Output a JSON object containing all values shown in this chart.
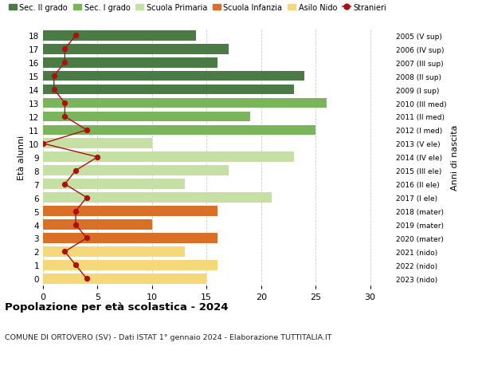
{
  "ages": [
    18,
    17,
    16,
    15,
    14,
    13,
    12,
    11,
    10,
    9,
    8,
    7,
    6,
    5,
    4,
    3,
    2,
    1,
    0
  ],
  "bar_values": [
    14,
    17,
    16,
    24,
    23,
    26,
    19,
    25,
    10,
    23,
    17,
    13,
    21,
    16,
    10,
    16,
    13,
    16,
    15
  ],
  "stranieri": [
    3,
    2,
    2,
    1,
    1,
    2,
    2,
    4,
    0,
    5,
    3,
    2,
    4,
    3,
    3,
    4,
    2,
    3,
    4
  ],
  "right_labels": [
    "2005 (V sup)",
    "2006 (IV sup)",
    "2007 (III sup)",
    "2008 (II sup)",
    "2009 (I sup)",
    "2010 (III med)",
    "2011 (II med)",
    "2012 (I med)",
    "2013 (V ele)",
    "2014 (IV ele)",
    "2015 (III ele)",
    "2016 (II ele)",
    "2017 (I ele)",
    "2018 (mater)",
    "2019 (mater)",
    "2020 (mater)",
    "2021 (nido)",
    "2022 (nido)",
    "2023 (nido)"
  ],
  "bar_colors": [
    "#4a7a45",
    "#4a7a45",
    "#4a7a45",
    "#4a7a45",
    "#4a7a45",
    "#7ab55c",
    "#7ab55c",
    "#7ab55c",
    "#c5dfa5",
    "#c5dfa5",
    "#c5dfa5",
    "#c5dfa5",
    "#c5dfa5",
    "#d97028",
    "#d97028",
    "#d97028",
    "#f5d87a",
    "#f5d87a",
    "#f5d87a"
  ],
  "legend_labels": [
    "Sec. II grado",
    "Sec. I grado",
    "Scuola Primaria",
    "Scuola Infanzia",
    "Asilo Nido",
    "Stranieri"
  ],
  "legend_colors": [
    "#4a7a45",
    "#7ab55c",
    "#c5dfa5",
    "#d97028",
    "#f5d87a",
    "#cc1111"
  ],
  "title": "Popolazione per età scolastica - 2024",
  "subtitle": "COMUNE DI ORTOVERO (SV) - Dati ISTAT 1° gennaio 2024 - Elaborazione TUTTITALIA.IT",
  "ylabel": "Età alunni",
  "ylabel2": "Anni di nascita",
  "xlim": [
    0,
    32
  ],
  "ylim": [
    -0.5,
    18.5
  ],
  "stranieri_color": "#aa1111",
  "background_color": "#ffffff",
  "bar_height": 0.75,
  "grid_color": "#cccccc"
}
